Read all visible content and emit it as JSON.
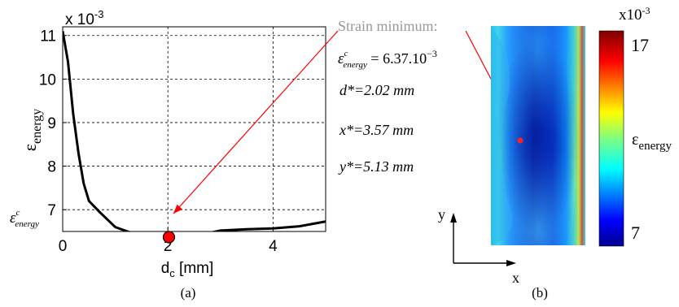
{
  "colors": {
    "curve": "#000000",
    "marker_fill": "#ff0000",
    "arrow": "#ff0000",
    "annotation_title": "#999999",
    "grid": "#000000"
  },
  "chart_data": [
    {
      "type": "line",
      "panel_label": "(a)",
      "scale_note": {
        "prefix": "x 10",
        "exponent": "-3"
      },
      "xlabel": {
        "main": "d",
        "sub": "c",
        "suffix": " [mm]"
      },
      "ylabel": {
        "main": "ε",
        "sub": "energy"
      },
      "xlim": [
        0,
        5
      ],
      "ylim": [
        6.5,
        11.2
      ],
      "xticks": [
        0,
        2,
        4
      ],
      "xticklabels": [
        "0",
        "2",
        "4"
      ],
      "yticks": [
        7,
        8,
        9,
        10,
        11
      ],
      "yticklabels": [
        "7",
        "8",
        "9",
        "10",
        "11"
      ],
      "grid": true,
      "series": [
        {
          "x": [
            0,
            0.1,
            0.2,
            0.3,
            0.4,
            0.5,
            0.7,
            1.0,
            1.3,
            1.6,
            2.0,
            2.2,
            2.5,
            2.8,
            3.0,
            3.5,
            4.0,
            4.5,
            5.0
          ],
          "y": [
            11.1,
            10.4,
            9.2,
            8.3,
            7.6,
            7.2,
            6.95,
            6.6,
            6.47,
            6.42,
            6.37,
            6.39,
            6.4,
            6.47,
            6.52,
            6.55,
            6.57,
            6.62,
            6.73
          ]
        }
      ],
      "minimum_marker": {
        "x": 2.02,
        "y": 6.37
      },
      "reference_line_label": {
        "symbol": "ε",
        "sup": "c",
        "sub": "energy"
      }
    },
    {
      "type": "heatmap",
      "panel_label": "(b)",
      "colorbar": {
        "scale_note": {
          "prefix": "x10",
          "exponent": "-3"
        },
        "max_label": "17",
        "min_label": "7",
        "range": [
          7,
          17
        ],
        "label": {
          "main": "ε",
          "sub": "energy"
        }
      },
      "axes": {
        "x": "x",
        "y": "y"
      },
      "minimum_point": {
        "x_mm": 3.57,
        "y_mm": 5.13
      }
    }
  ],
  "annotation": {
    "title": "Strain minimum:",
    "eps_symbol": "ε",
    "eps_sup": "c",
    "eps_sub": "energy",
    "eps_value": " = 6.37.10",
    "eps_exp": "−3",
    "lines": [
      "d*=2.02 mm",
      "x*=3.57 mm",
      "y*=5.13 mm"
    ]
  }
}
